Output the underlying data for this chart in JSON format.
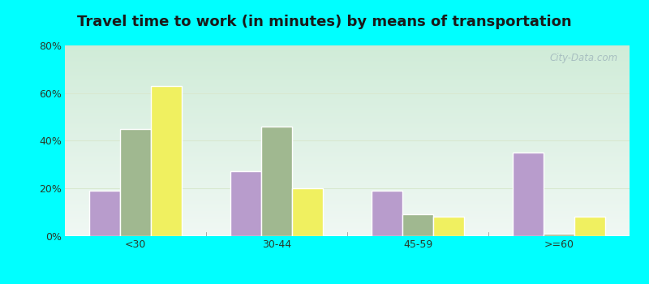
{
  "title": "Travel time to work (in minutes) by means of transportation",
  "categories": [
    "<30",
    "30-44",
    "45-59",
    ">=60"
  ],
  "series": {
    "Public transportation - Illinois": [
      19,
      27,
      19,
      35
    ],
    "Other means - Williamsfield": [
      45,
      46,
      9,
      1
    ],
    "Other means - Illinois": [
      63,
      20,
      8,
      8
    ]
  },
  "colors": {
    "Public transportation - Illinois": "#b89ccc",
    "Other means - Williamsfield": "#a0b890",
    "Other means - Illinois": "#f0f060"
  },
  "ylim": [
    0,
    80
  ],
  "yticks": [
    0,
    20,
    40,
    60,
    80
  ],
  "ytick_labels": [
    "0%",
    "20%",
    "40%",
    "60%",
    "80%"
  ],
  "outer_background": "#00ffff",
  "grid_color": "#d8e8d0",
  "bar_width": 0.22,
  "title_fontsize": 13,
  "legend_fontsize": 9,
  "tick_fontsize": 9,
  "bar_edge_color": "#ffffff",
  "bar_edge_width": 1.0
}
